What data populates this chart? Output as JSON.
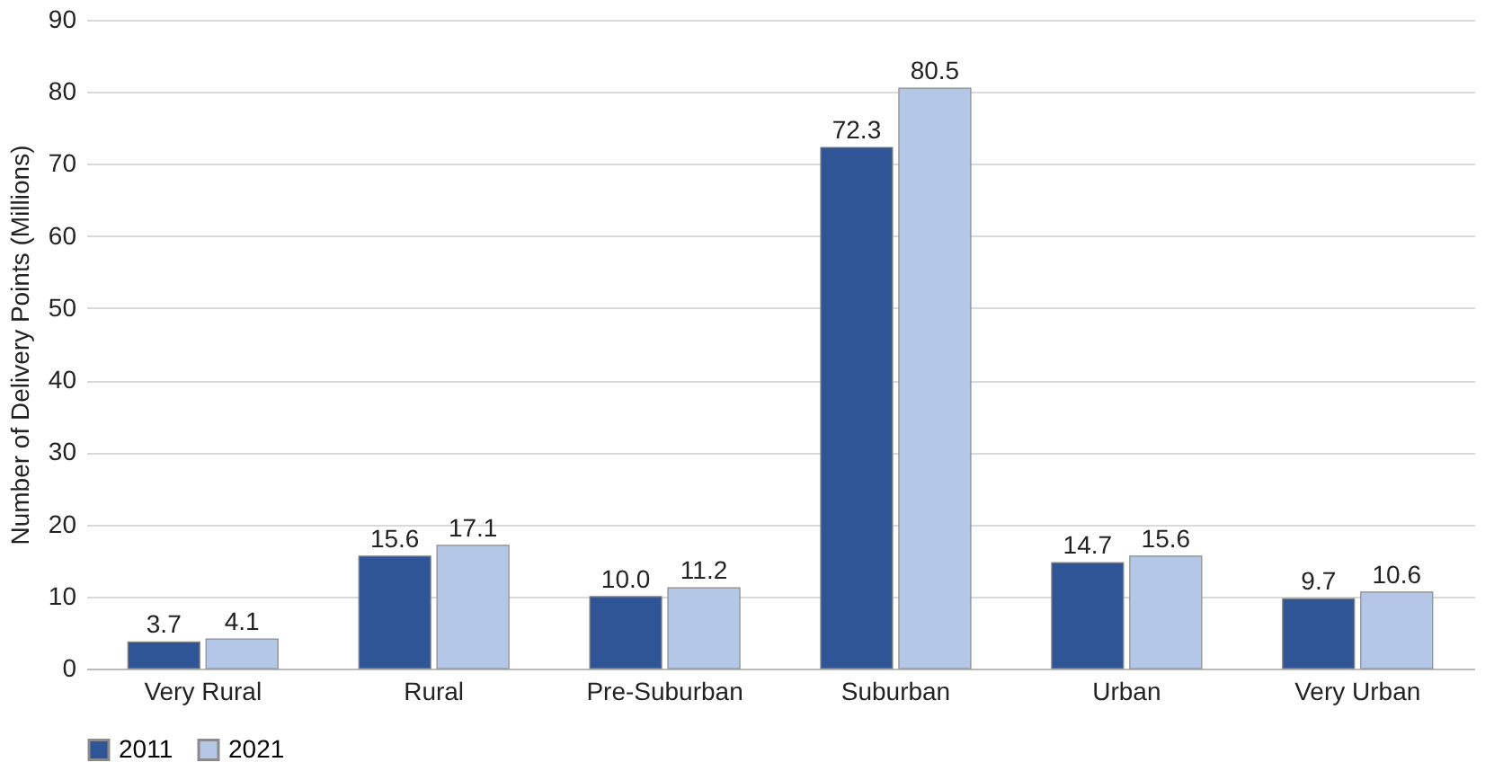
{
  "chart_data": {
    "type": "bar",
    "ylabel": "Number of Delivery Points (Millions)",
    "categories": [
      "Very Rural",
      "Rural",
      "Pre-Suburban",
      "Suburban",
      "Urban",
      "Very Urban"
    ],
    "series": [
      {
        "name": "2011",
        "color": "#2f5597",
        "values": [
          3.7,
          15.6,
          10.0,
          72.3,
          14.7,
          9.7
        ]
      },
      {
        "name": "2021",
        "color": "#b4c7e7",
        "values": [
          4.1,
          17.1,
          11.2,
          80.5,
          15.6,
          10.6
        ]
      }
    ],
    "value_labels": [
      [
        "3.7",
        "15.6",
        "10.0",
        "72.3",
        "14.7",
        "9.7"
      ],
      [
        "4.1",
        "17.1",
        "11.2",
        "80.5",
        "15.6",
        "10.6"
      ]
    ],
    "ylim": [
      0,
      90
    ],
    "yticks": [
      0,
      10,
      20,
      30,
      40,
      50,
      60,
      70,
      80,
      90
    ],
    "grid": "y",
    "legend": "bottom"
  }
}
